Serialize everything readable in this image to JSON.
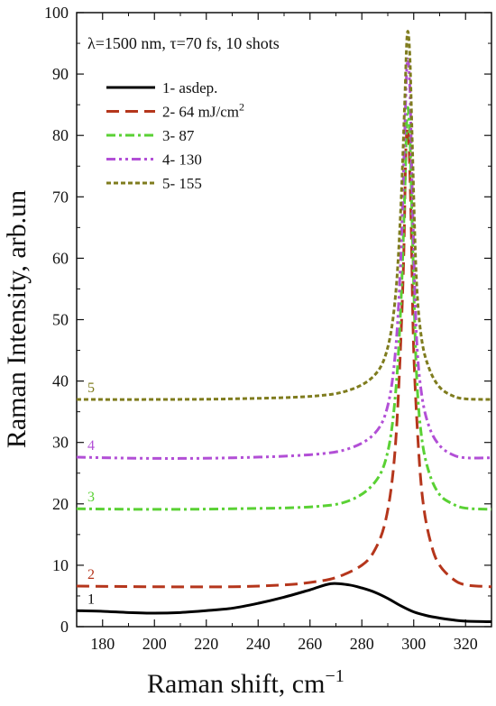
{
  "chart_data": {
    "type": "line",
    "xlabel": "Raman shift, cm",
    "xlabel_sup": "−1",
    "ylabel": "Raman Intensity, arb.un",
    "xlim": [
      170,
      330
    ],
    "ylim": [
      0,
      100
    ],
    "xticks": [
      180,
      200,
      220,
      240,
      260,
      280,
      300,
      320
    ],
    "yticks": [
      0,
      10,
      20,
      30,
      40,
      50,
      60,
      70,
      80,
      90,
      100
    ],
    "annotation": "λ=1500 nm, τ=70 fs, 10 shots",
    "grid": false,
    "legend_position": "top-left",
    "series": [
      {
        "name": "1- asdep.",
        "curve_label": "1",
        "color": "#000000",
        "dash": "solid",
        "points": [
          [
            170,
            2.6
          ],
          [
            180,
            2.5
          ],
          [
            190,
            2.3
          ],
          [
            200,
            2.2
          ],
          [
            210,
            2.3
          ],
          [
            220,
            2.6
          ],
          [
            230,
            3.0
          ],
          [
            240,
            3.8
          ],
          [
            250,
            4.8
          ],
          [
            260,
            6.0
          ],
          [
            268,
            7.0
          ],
          [
            275,
            6.8
          ],
          [
            280,
            6.3
          ],
          [
            285,
            5.6
          ],
          [
            290,
            4.6
          ],
          [
            295,
            3.4
          ],
          [
            300,
            2.4
          ],
          [
            305,
            1.8
          ],
          [
            310,
            1.4
          ],
          [
            315,
            1.1
          ],
          [
            320,
            0.9
          ],
          [
            330,
            0.8
          ]
        ]
      },
      {
        "name": "2- 64 mJ/cm",
        "name_sup": "2",
        "curve_label": "2",
        "color": "#b5361c",
        "dash": "long-dash",
        "points": [
          [
            170,
            6.6
          ],
          [
            200,
            6.5
          ],
          [
            230,
            6.5
          ],
          [
            250,
            6.8
          ],
          [
            260,
            7.2
          ],
          [
            270,
            8.0
          ],
          [
            280,
            10.0
          ],
          [
            285,
            12.5
          ],
          [
            289,
            17.0
          ],
          [
            292,
            25.0
          ],
          [
            294,
            37.0
          ],
          [
            296,
            58.0
          ],
          [
            297,
            78.0
          ],
          [
            298,
            80.0
          ],
          [
            299,
            66.0
          ],
          [
            300,
            45.0
          ],
          [
            302,
            28.0
          ],
          [
            304,
            19.0
          ],
          [
            307,
            13.0
          ],
          [
            310,
            10.0
          ],
          [
            315,
            7.8
          ],
          [
            320,
            6.8
          ],
          [
            330,
            6.5
          ]
        ]
      },
      {
        "name": "3- 87",
        "curve_label": "3",
        "color": "#5ad134",
        "dash": "dash-dot",
        "points": [
          [
            170,
            19.2
          ],
          [
            200,
            19.1
          ],
          [
            230,
            19.2
          ],
          [
            260,
            19.5
          ],
          [
            275,
            20.5
          ],
          [
            285,
            23.5
          ],
          [
            290,
            28.5
          ],
          [
            293,
            38.0
          ],
          [
            295,
            52.0
          ],
          [
            296.5,
            70.0
          ],
          [
            297.5,
            84.0
          ],
          [
            298.5,
            80.0
          ],
          [
            299.5,
            64.0
          ],
          [
            301,
            42.0
          ],
          [
            303,
            31.0
          ],
          [
            306,
            25.0
          ],
          [
            310,
            21.5
          ],
          [
            315,
            20.0
          ],
          [
            320,
            19.3
          ],
          [
            330,
            19.1
          ]
        ]
      },
      {
        "name": "4- 130",
        "curve_label": "4",
        "color": "#b24fd6",
        "dash": "dash-dot-dot",
        "points": [
          [
            170,
            27.6
          ],
          [
            200,
            27.4
          ],
          [
            230,
            27.5
          ],
          [
            260,
            28.0
          ],
          [
            275,
            29.0
          ],
          [
            285,
            31.5
          ],
          [
            290,
            36.0
          ],
          [
            293,
            45.0
          ],
          [
            295,
            60.0
          ],
          [
            296.5,
            80.0
          ],
          [
            297.5,
            92.0
          ],
          [
            298.5,
            88.0
          ],
          [
            299.5,
            70.0
          ],
          [
            301,
            48.0
          ],
          [
            303,
            38.0
          ],
          [
            306,
            32.5
          ],
          [
            310,
            29.5
          ],
          [
            315,
            28.0
          ],
          [
            320,
            27.5
          ],
          [
            330,
            27.5
          ]
        ]
      },
      {
        "name": "5- 155",
        "curve_label": "5",
        "color": "#7f7c1e",
        "dash": "short-dash",
        "points": [
          [
            170,
            37.0
          ],
          [
            200,
            37.0
          ],
          [
            230,
            37.1
          ],
          [
            260,
            37.5
          ],
          [
            275,
            38.5
          ],
          [
            285,
            41.0
          ],
          [
            290,
            45.5
          ],
          [
            293,
            54.0
          ],
          [
            295,
            68.0
          ],
          [
            296.5,
            85.0
          ],
          [
            297.5,
            96.5
          ],
          [
            298.5,
            93.0
          ],
          [
            299.5,
            78.0
          ],
          [
            301,
            57.0
          ],
          [
            303,
            47.0
          ],
          [
            306,
            42.0
          ],
          [
            310,
            39.0
          ],
          [
            315,
            37.6
          ],
          [
            320,
            37.1
          ],
          [
            330,
            37.0
          ]
        ]
      }
    ]
  }
}
